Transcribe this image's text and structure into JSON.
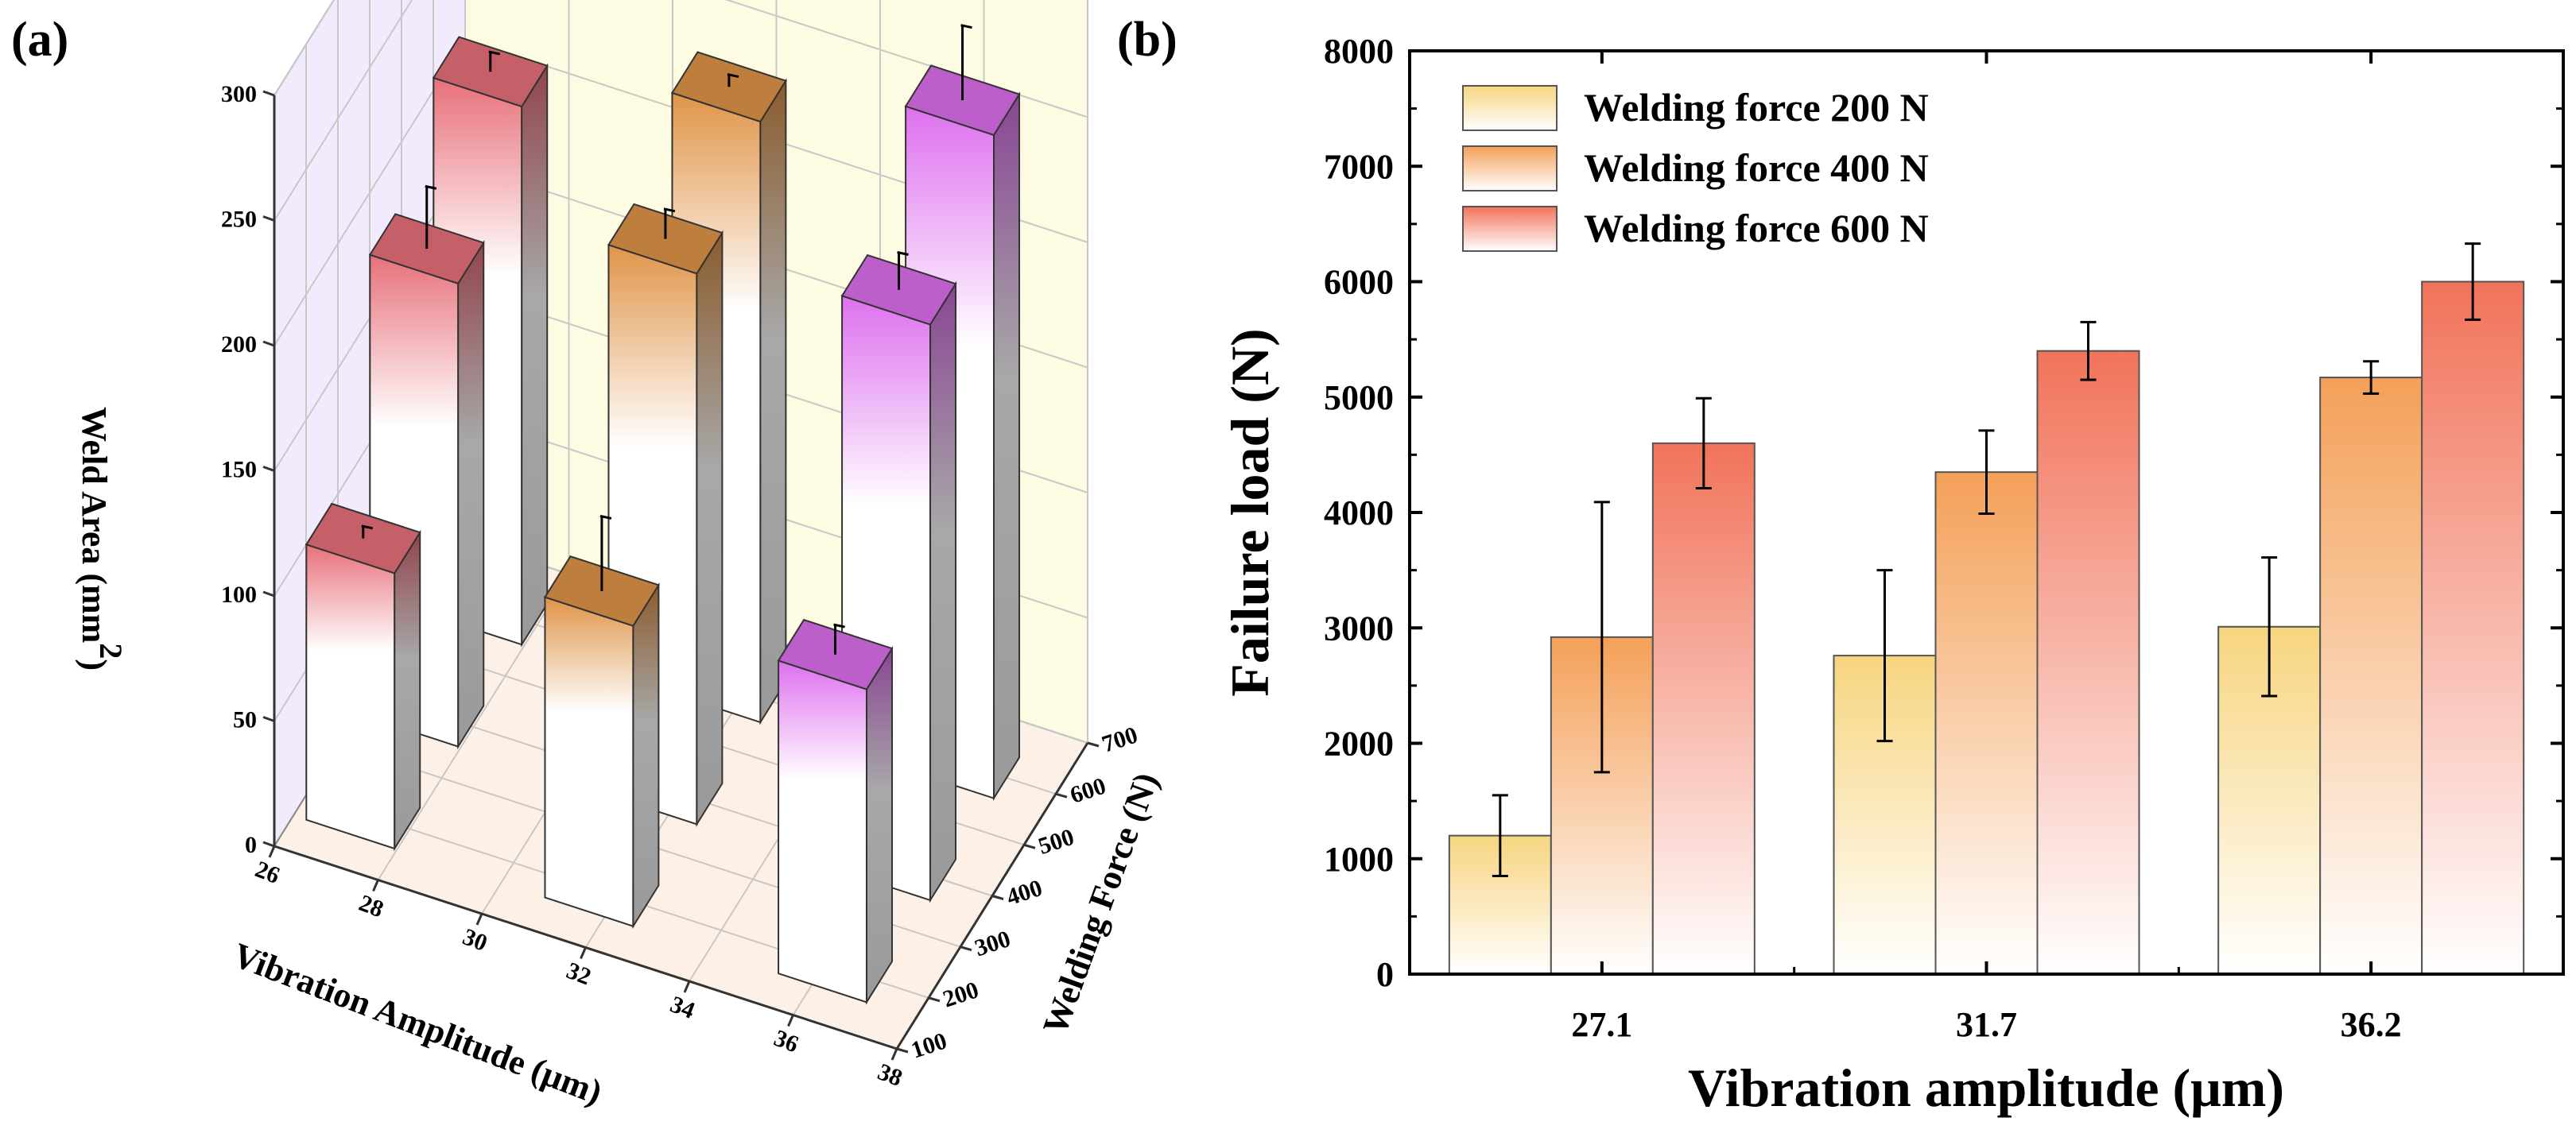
{
  "chart_data": [
    {
      "type": "bar3d",
      "panel_label": "(a)",
      "zlabel": "Weld Area (mm²)",
      "zlabel_main": "Weld Area (mm",
      "zlabel_sup": "2",
      "zlabel_close": ")",
      "xlabel": "Vibration Amplitude (μm)",
      "ylabel": "Welding Force (N)",
      "zlim": [
        0,
        300
      ],
      "z_ticks": [
        "0",
        "50",
        "100",
        "150",
        "200",
        "250",
        "300"
      ],
      "x_ticks": [
        "26",
        "28",
        "30",
        "32",
        "34",
        "36",
        "38"
      ],
      "y_ticks": [
        "100",
        "200",
        "300",
        "400",
        "500",
        "600",
        "700"
      ],
      "amplitudes": [
        27.1,
        31.7,
        36.2
      ],
      "forces": [
        200,
        400,
        600
      ],
      "series": [
        {
          "force": 200,
          "values": [
            110,
            120,
            125
          ],
          "errors": [
            5,
            30,
            12
          ]
        },
        {
          "force": 400,
          "values": [
            185,
            220,
            230
          ],
          "errors": [
            25,
            12,
            15
          ]
        },
        {
          "force": 600,
          "values": [
            215,
            240,
            265
          ],
          "errors": [
            8,
            5,
            30
          ]
        }
      ],
      "colors": [
        "#e8707a",
        "#e09448",
        "#dd70ee"
      ]
    },
    {
      "type": "bar",
      "panel_label": "(b)",
      "ylabel": "Failure load (N)",
      "xlabel": "Vibration amplitude (μm)",
      "categories": [
        "27.1",
        "31.7",
        "36.2"
      ],
      "ylim": [
        0,
        8000
      ],
      "y_ticks": [
        "0",
        "1000",
        "2000",
        "3000",
        "4000",
        "5000",
        "6000",
        "7000",
        "8000"
      ],
      "series": [
        {
          "name": "Welding force 200 N",
          "values": [
            1200,
            2760,
            3010
          ],
          "errors": [
            350,
            740,
            600
          ],
          "color": "#f7d57f"
        },
        {
          "name": "Welding force 400 N",
          "values": [
            2920,
            4350,
            5170
          ],
          "errors": [
            1170,
            360,
            140
          ],
          "color": "#f4a058"
        },
        {
          "name": "Welding force 600 N",
          "values": [
            4600,
            5400,
            6000
          ],
          "errors": [
            390,
            250,
            330
          ],
          "color": "#f1735a"
        }
      ]
    }
  ]
}
